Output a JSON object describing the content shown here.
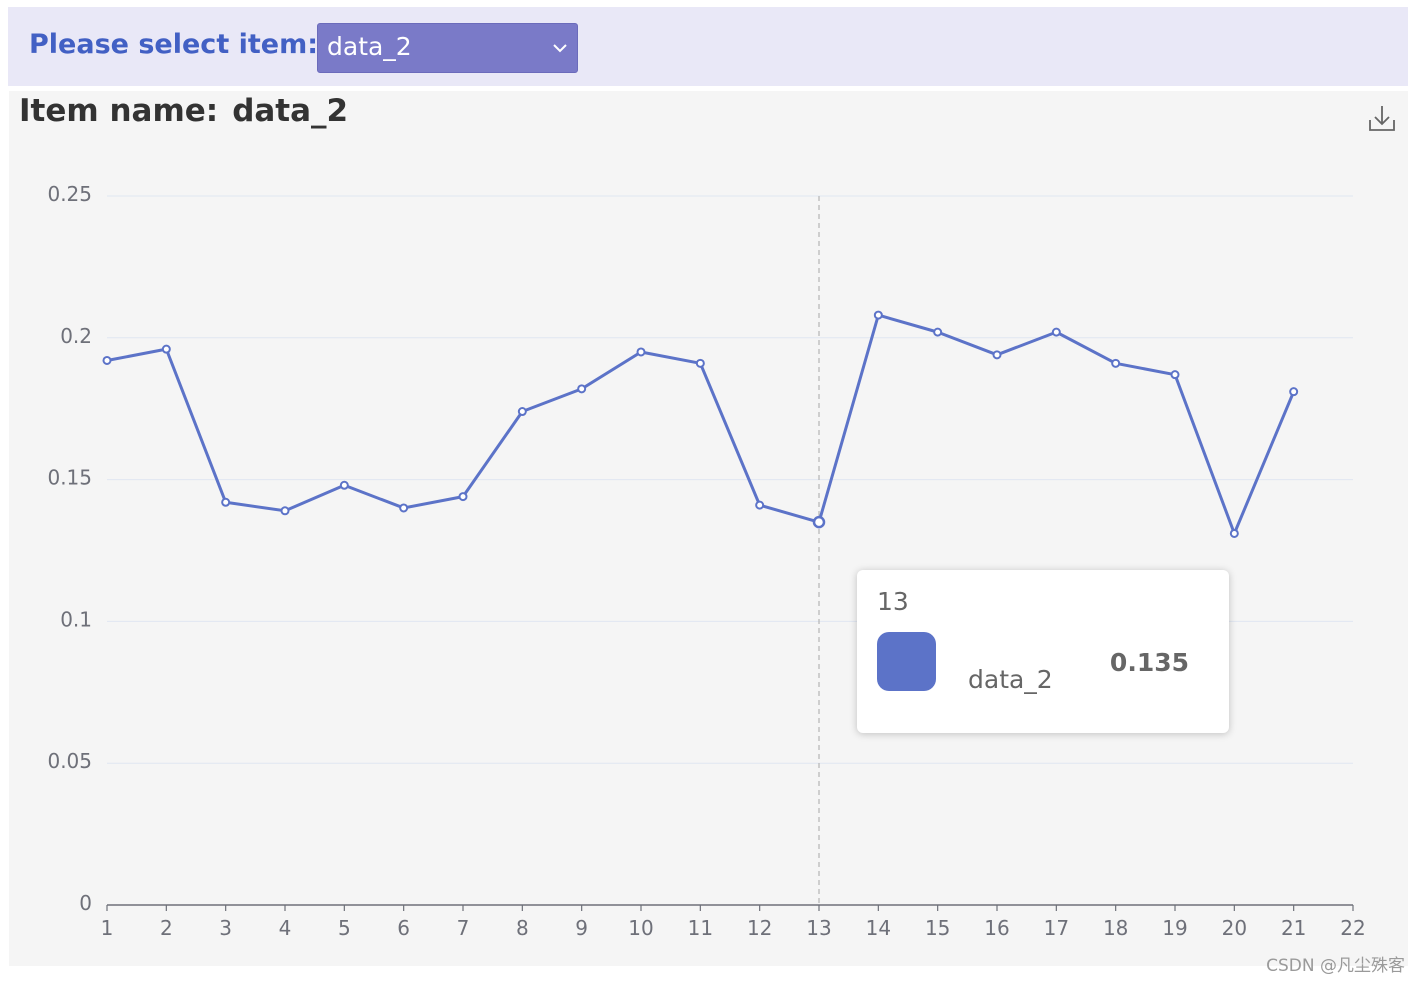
{
  "selector": {
    "label": "Please select item:",
    "selected": "data_2",
    "chevron_icon": "chevron-down-icon"
  },
  "chart_header": {
    "title_prefix": "Item name:",
    "title_value": "data_2",
    "download_icon": "download-icon"
  },
  "tooltip": {
    "x": "13",
    "series": "data_2",
    "value": "0.135"
  },
  "watermark": "CSDN @凡尘殊客",
  "colors": {
    "series": "#5c73c8",
    "accent": "#4260c4",
    "select_bg": "#7a7ac8",
    "panel_bg": "#f5f5f5"
  },
  "chart_data": {
    "type": "line",
    "x": [
      1,
      2,
      3,
      4,
      5,
      6,
      7,
      8,
      9,
      10,
      11,
      12,
      13,
      14,
      15,
      16,
      17,
      18,
      19,
      20,
      21
    ],
    "x_ticks": [
      "1",
      "2",
      "3",
      "4",
      "5",
      "6",
      "7",
      "8",
      "9",
      "10",
      "11",
      "12",
      "13",
      "14",
      "15",
      "16",
      "17",
      "18",
      "19",
      "20",
      "21",
      "22"
    ],
    "y_ticks": [
      "0",
      "0.05",
      "0.1",
      "0.15",
      "0.2",
      "0.25"
    ],
    "xlim": [
      1,
      22
    ],
    "ylim": [
      0,
      0.25
    ],
    "series": [
      {
        "name": "data_2",
        "values": [
          0.192,
          0.196,
          0.142,
          0.139,
          0.148,
          0.14,
          0.144,
          0.174,
          0.182,
          0.195,
          0.191,
          0.141,
          0.135,
          0.208,
          0.202,
          0.194,
          0.202,
          0.191,
          0.187,
          0.131,
          0.181
        ]
      }
    ],
    "highlight_x": 13,
    "grid": true,
    "legend": "none"
  }
}
